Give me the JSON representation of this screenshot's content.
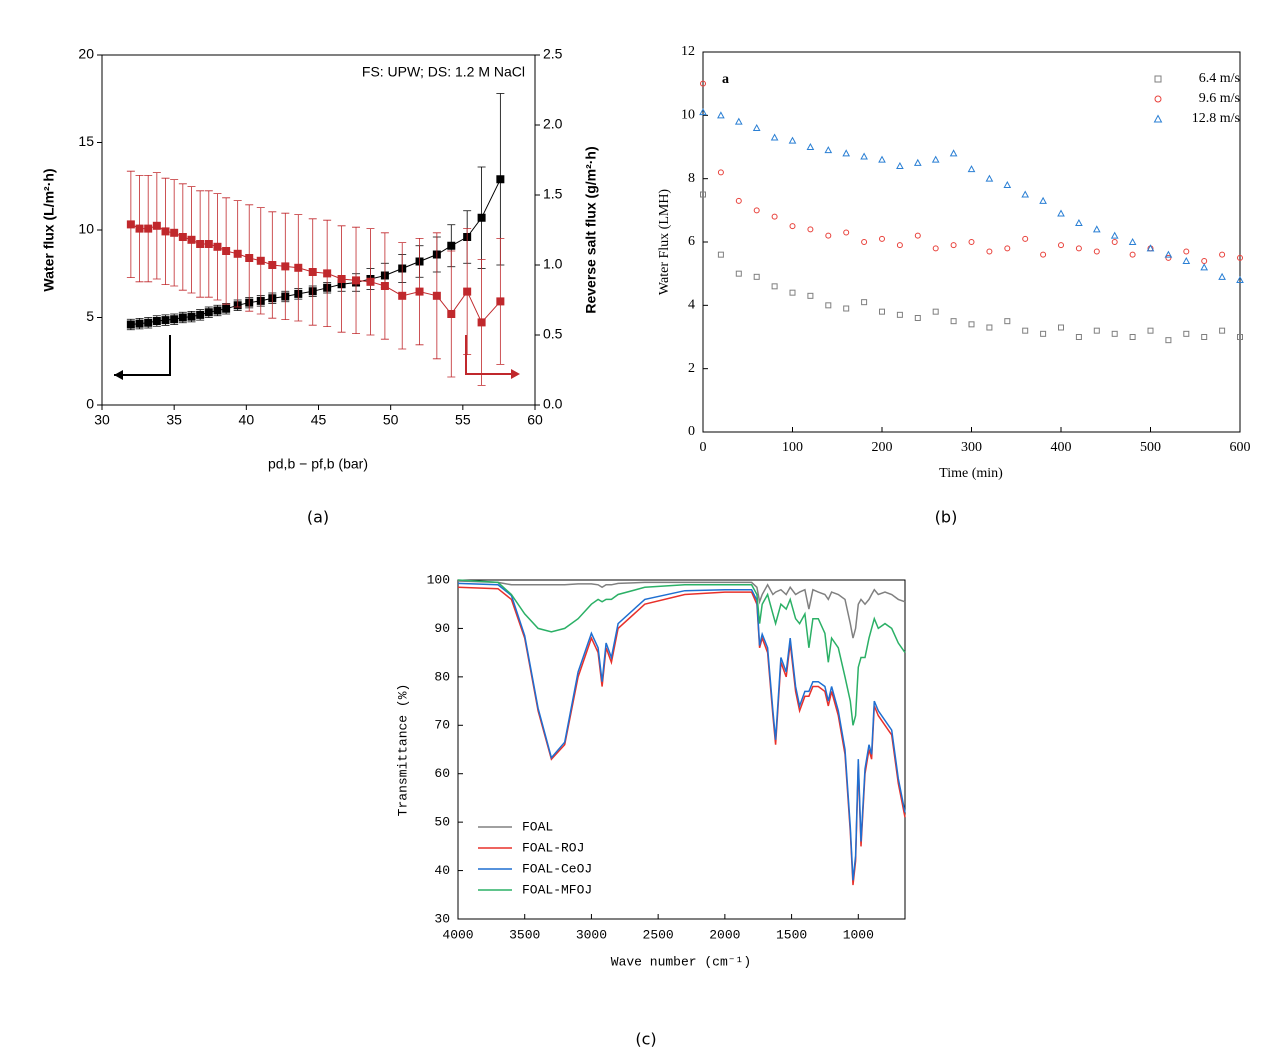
{
  "chart_data": [
    {
      "type": "line",
      "caption": "(a)",
      "annotation": "FS: UPW; DS: 1.2 M NaCl",
      "x_label": "pd,b − pf,b (bar)",
      "y_label": "Water flux (L/m²·h)",
      "y2_label": "Reverse salt flux (g/m²·h)",
      "x": [
        32,
        32.6,
        33.2,
        33.8,
        34.4,
        35,
        35.6,
        36.2,
        36.8,
        37.4,
        38,
        38.6,
        39.4,
        40.2,
        41,
        41.8,
        42.7,
        43.6,
        44.6,
        45.6,
        46.6,
        47.6,
        48.6,
        49.6,
        50.8,
        52,
        53.2,
        54.2,
        55.3,
        56.3,
        57.6
      ],
      "series": [
        {
          "color": "#000000",
          "marker": "square",
          "filled": true,
          "values": [
            4.6,
            4.65,
            4.7,
            4.8,
            4.85,
            4.9,
            5.0,
            5.05,
            5.15,
            5.3,
            5.4,
            5.5,
            5.7,
            5.85,
            5.95,
            6.1,
            6.2,
            6.35,
            6.5,
            6.7,
            6.9,
            7.0,
            7.2,
            7.4,
            7.8,
            8.2,
            8.6,
            9.1,
            9.6,
            10.7,
            12.9
          ],
          "errors": [
            0.3,
            0.3,
            0.3,
            0.3,
            0.3,
            0.3,
            0.3,
            0.3,
            0.3,
            0.3,
            0.3,
            0.3,
            0.3,
            0.3,
            0.3,
            0.3,
            0.3,
            0.3,
            0.3,
            0.3,
            0.4,
            0.5,
            0.6,
            0.7,
            0.8,
            0.9,
            1.0,
            1.2,
            1.5,
            2.9,
            4.9
          ]
        },
        {
          "color": "#c0282c",
          "marker": "square",
          "filled": true,
          "axis": "y2",
          "values": [
            1.29,
            1.26,
            1.26,
            1.28,
            1.24,
            1.23,
            1.2,
            1.18,
            1.15,
            1.15,
            1.13,
            1.1,
            1.08,
            1.05,
            1.03,
            1.0,
            0.99,
            0.98,
            0.95,
            0.94,
            0.9,
            0.89,
            0.88,
            0.85,
            0.78,
            0.81,
            0.78,
            0.65,
            0.81,
            0.59,
            0.74
          ],
          "errors": [
            0.38,
            0.38,
            0.38,
            0.38,
            0.38,
            0.38,
            0.38,
            0.38,
            0.38,
            0.38,
            0.38,
            0.38,
            0.38,
            0.38,
            0.38,
            0.38,
            0.38,
            0.38,
            0.38,
            0.38,
            0.38,
            0.38,
            0.38,
            0.38,
            0.38,
            0.38,
            0.45,
            0.45,
            0.45,
            0.45,
            0.45
          ]
        }
      ],
      "xlim": [
        30,
        60
      ],
      "xticks": [
        30,
        35,
        40,
        45,
        50,
        55,
        60
      ],
      "ylim": [
        0,
        20
      ],
      "yticks": [
        0,
        5,
        10,
        15,
        20
      ],
      "y2lim": [
        0,
        2.5
      ],
      "y2ticks": [
        {
          "value": 0,
          "label": "0.0"
        },
        0.5,
        {
          "value": 1,
          "label": "1.0"
        },
        1.5,
        {
          "value": 2,
          "label": "2.0"
        },
        2.5
      ]
    },
    {
      "type": "scatter",
      "caption": "(b)",
      "annotation": "a",
      "x_label": "Time (min)",
      "y_label": "Water Flux (LMH)",
      "x": [
        0,
        20,
        40,
        60,
        80,
        100,
        120,
        140,
        160,
        180,
        200,
        220,
        240,
        260,
        280,
        300,
        320,
        340,
        360,
        380,
        400,
        420,
        440,
        460,
        480,
        500,
        520,
        540,
        560,
        580,
        600
      ],
      "series": [
        {
          "name": "6.4 m/s",
          "color": "#7f7f7f",
          "marker": "square",
          "values": [
            7.5,
            5.6,
            5.0,
            4.9,
            4.6,
            4.4,
            4.3,
            4.0,
            3.9,
            4.1,
            3.8,
            3.7,
            3.6,
            3.8,
            3.5,
            3.4,
            3.3,
            3.5,
            3.2,
            3.1,
            3.3,
            3.0,
            3.2,
            3.1,
            3.0,
            3.2,
            2.9,
            3.1,
            3.0,
            3.2,
            3.0
          ]
        },
        {
          "name": "9.6 m/s",
          "color": "#e8403a",
          "marker": "circle",
          "values": [
            11.0,
            8.2,
            7.3,
            7.0,
            6.8,
            6.5,
            6.4,
            6.2,
            6.3,
            6.0,
            6.1,
            5.9,
            6.2,
            5.8,
            5.9,
            6.0,
            5.7,
            5.8,
            6.1,
            5.6,
            5.9,
            5.8,
            5.7,
            6.0,
            5.6,
            5.8,
            5.5,
            5.7,
            5.4,
            5.6,
            5.5
          ]
        },
        {
          "name": "12.8 m/s",
          "color": "#2a7fd4",
          "marker": "triangle",
          "values": [
            10.1,
            10.0,
            9.8,
            9.6,
            9.3,
            9.2,
            9.0,
            8.9,
            8.8,
            8.7,
            8.6,
            8.4,
            8.5,
            8.6,
            8.8,
            8.3,
            8.0,
            7.8,
            7.5,
            7.3,
            6.9,
            6.6,
            6.4,
            6.2,
            6.0,
            5.8,
            5.6,
            5.4,
            5.2,
            4.9,
            4.8
          ]
        }
      ],
      "xlim": [
        0,
        600
      ],
      "xticks": [
        0,
        100,
        200,
        300,
        400,
        500,
        600
      ],
      "ylim": [
        0,
        12
      ],
      "yticks": [
        0,
        2,
        4,
        6,
        8,
        10,
        12
      ],
      "legend": "upper right"
    },
    {
      "type": "line",
      "caption": "(c)",
      "x_label": "Wave number (cm⁻¹)",
      "y_label": "Transmittance (%)",
      "x": [
        4000,
        3700,
        3600,
        3500,
        3400,
        3300,
        3200,
        3100,
        3000,
        2950,
        2920,
        2890,
        2850,
        2800,
        2600,
        2300,
        2000,
        1800,
        1760,
        1740,
        1720,
        1680,
        1640,
        1620,
        1580,
        1540,
        1510,
        1470,
        1440,
        1400,
        1370,
        1340,
        1300,
        1250,
        1225,
        1200,
        1150,
        1100,
        1060,
        1040,
        1020,
        1000,
        980,
        950,
        920,
        900,
        880,
        850,
        800,
        750,
        700,
        650
      ],
      "series": [
        {
          "name": "FOAL",
          "color": "#808080",
          "values": [
            99.8,
            99.5,
            99,
            99,
            99,
            99,
            99,
            99.2,
            99.2,
            99,
            98.5,
            99,
            99,
            99.3,
            99.5,
            99.5,
            99.5,
            99.5,
            98.5,
            95.5,
            97,
            99,
            97,
            97.5,
            98,
            97,
            98.5,
            97,
            97.5,
            98,
            94,
            98,
            97.5,
            97,
            96,
            97.5,
            97,
            96,
            91,
            88,
            90,
            95,
            96,
            95,
            96,
            97,
            98,
            97,
            97.5,
            97,
            96,
            95.5
          ]
        },
        {
          "name": "FOAL-ROJ",
          "color": "#e8302a",
          "values": [
            98.5,
            98.2,
            96,
            88,
            73,
            63,
            66,
            80,
            88,
            85,
            78,
            86,
            83,
            90,
            95,
            97,
            97.5,
            97.5,
            95,
            86,
            88,
            85,
            72,
            66,
            83,
            80,
            87,
            77,
            73,
            76,
            76,
            78,
            78,
            77,
            74,
            77,
            72,
            64,
            48,
            37,
            42,
            62,
            45,
            60,
            65,
            63,
            74,
            72,
            70,
            68,
            58,
            51
          ]
        },
        {
          "name": "FOAL-CeOJ",
          "color": "#1f6fd1",
          "values": [
            99.3,
            99,
            96.8,
            88.5,
            73.5,
            63.3,
            66.5,
            81,
            89,
            86,
            79,
            87,
            84,
            91,
            96,
            97.8,
            98,
            98,
            95.8,
            86.5,
            88.8,
            86,
            73,
            67,
            84,
            81,
            88,
            78,
            74,
            77,
            77,
            79,
            79,
            78,
            75,
            78,
            73,
            65,
            49,
            38,
            43,
            63,
            46,
            61,
            66,
            64,
            75,
            73,
            71,
            69,
            59,
            52
          ]
        },
        {
          "name": "FOAL-MFOJ",
          "color": "#2bb066",
          "values": [
            100,
            99.5,
            97,
            93,
            90,
            89.3,
            90,
            92,
            95,
            96,
            95.5,
            96,
            96,
            97,
            98.5,
            99,
            99,
            99,
            97,
            91,
            95,
            97,
            93,
            91,
            95,
            94,
            96,
            92,
            91,
            93,
            86,
            92,
            92,
            89,
            83,
            88,
            86,
            80,
            75,
            70,
            72,
            82,
            84,
            84,
            88,
            90,
            92,
            90,
            91,
            90,
            87,
            85
          ]
        }
      ],
      "xlim": [
        4000,
        650
      ],
      "xticks": [
        4000,
        3500,
        3000,
        2500,
        2000,
        1500,
        1000
      ],
      "ylim": [
        30,
        100
      ],
      "yticks": [
        30,
        40,
        50,
        60,
        70,
        80,
        90,
        100
      ],
      "legend": "lower left"
    }
  ]
}
